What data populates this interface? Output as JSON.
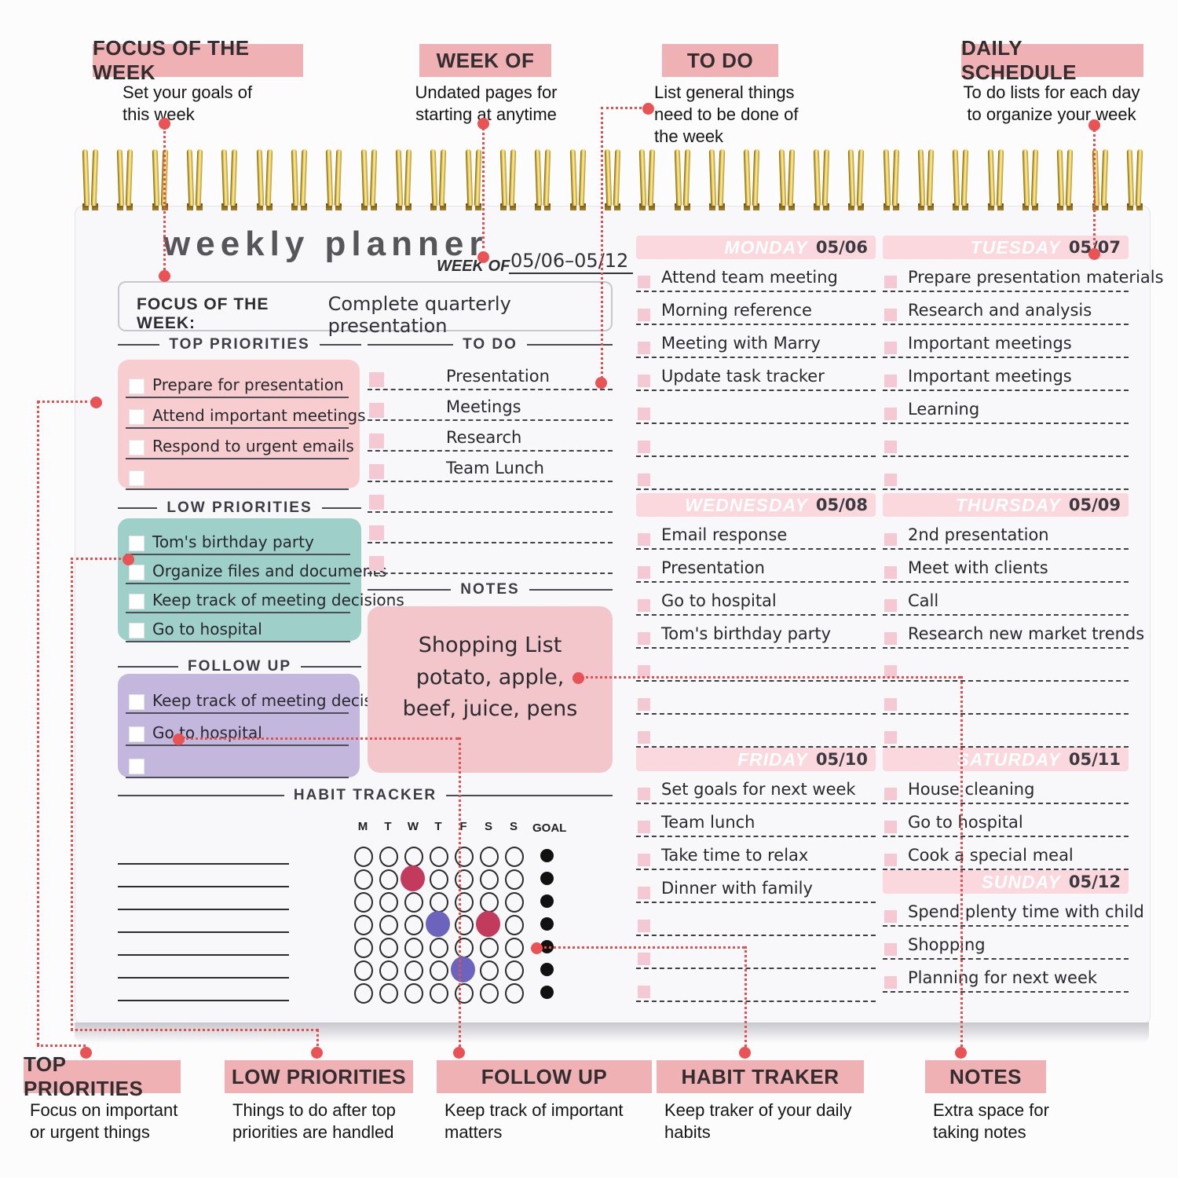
{
  "palette": {
    "accent_pink": "#f0b1b5",
    "day_bar": "#fbd7de",
    "day_chk": "#f5c9d3",
    "top_box": "#f7cdd0",
    "low_box": "#9ed0c9",
    "follow_box": "#c4b7dd",
    "notes_box": "#f2c6ca",
    "leader_red": "#e4504f",
    "goal_black": "#111111"
  },
  "top_callouts": [
    {
      "title": "FOCUS OF THE WEEK",
      "desc": "Set your goals of\nthis week"
    },
    {
      "title": "WEEK OF",
      "desc": "Undated pages for\nstarting at anytime"
    },
    {
      "title": "TO DO",
      "desc": "List general things\nneed to be done of\nthe week"
    },
    {
      "title": "DAILY SCHEDULE",
      "desc": "To do lists for each day\nto organize your week"
    }
  ],
  "bottom_callouts": [
    {
      "title": "TOP PRIORITIES",
      "desc": "Focus on important\nor urgent things"
    },
    {
      "title": "LOW PRIORITIES",
      "desc": "Things to do after top\npriorities are handled"
    },
    {
      "title": "FOLLOW UP",
      "desc": "Keep track of important\nmatters"
    },
    {
      "title": "HABIT TRAKER",
      "desc": "Keep traker of your daily\nhabits"
    },
    {
      "title": "NOTES",
      "desc": "Extra space for\ntaking notes"
    }
  ],
  "planner": {
    "title": "weekly planner",
    "week_of_label": "WEEK OF",
    "week_of_value": "05/06–05/12",
    "focus_label": "FOCUS OF THE WEEK:",
    "focus_value": "Complete quarterly presentation",
    "sections": {
      "top_priorities": {
        "label": "TOP PRIORITIES",
        "items": [
          "Prepare for presentation",
          "Attend important meetings",
          "Respond to urgent emails",
          ""
        ]
      },
      "low_priorities": {
        "label": "LOW PRIORITIES",
        "items": [
          "Tom's birthday party",
          "Organize files and documents",
          "Keep track of meeting decisions",
          "Go to hospital"
        ]
      },
      "follow_up": {
        "label": "FOLLOW UP",
        "items": [
          "Keep track of meeting decisions",
          "Go to hospital",
          ""
        ]
      },
      "todo": {
        "label": "TO DO",
        "items": [
          "Presentation",
          "Meetings",
          "Research",
          "Team Lunch",
          "",
          "",
          ""
        ]
      },
      "notes": {
        "label": "NOTES",
        "lines": [
          "Shopping List",
          "potato, apple,",
          "beef, juice, pens"
        ]
      },
      "habit_tracker": {
        "label": "HABIT TRACKER",
        "columns": [
          "M",
          "T",
          "W",
          "T",
          "F",
          "S",
          "S"
        ],
        "goal_label": "GOAL",
        "rows": 7,
        "filled": [
          {
            "row": 1,
            "col": 2,
            "color": "#c23a5c"
          },
          {
            "row": 3,
            "col": 3,
            "color": "#6c63bd"
          },
          {
            "row": 3,
            "col": 5,
            "color": "#c23a5c"
          },
          {
            "row": 5,
            "col": 4,
            "color": "#6c63bd"
          }
        ]
      }
    },
    "days": [
      {
        "name": "MONDAY",
        "date": "05/06",
        "rows": [
          "Attend team meeting",
          "Morning reference",
          "Meeting with Marry",
          "Update task tracker",
          "",
          "",
          ""
        ]
      },
      {
        "name": "TUESDAY",
        "date": "05/07",
        "rows": [
          "Prepare presentation materials",
          "Research and analysis",
          "Important meetings",
          "Important meetings",
          "Learning",
          "",
          ""
        ]
      },
      {
        "name": "WEDNESDAY",
        "date": "05/08",
        "rows": [
          "Email response",
          "Presentation",
          "Go to hospital",
          "Tom's birthday party",
          "",
          "",
          ""
        ]
      },
      {
        "name": "THURSDAY",
        "date": "05/09",
        "rows": [
          "2nd presentation",
          "Meet with clients",
          "Call",
          "Research new market trends",
          "",
          "",
          ""
        ]
      },
      {
        "name": "FRIDAY",
        "date": "05/10",
        "rows": [
          "Set goals for next week",
          "Team lunch",
          "Take time to relax",
          "Dinner with family",
          "",
          "",
          ""
        ]
      },
      {
        "name": "SATURDAY",
        "date": "05/11",
        "rows": [
          "House cleaning",
          "Go to hospital",
          "Cook a special meal"
        ]
      },
      {
        "name": "SUNDAY",
        "date": "05/12",
        "rows": [
          "Spend plenty time with child",
          "Shopping",
          "Planning for next week"
        ]
      }
    ]
  }
}
